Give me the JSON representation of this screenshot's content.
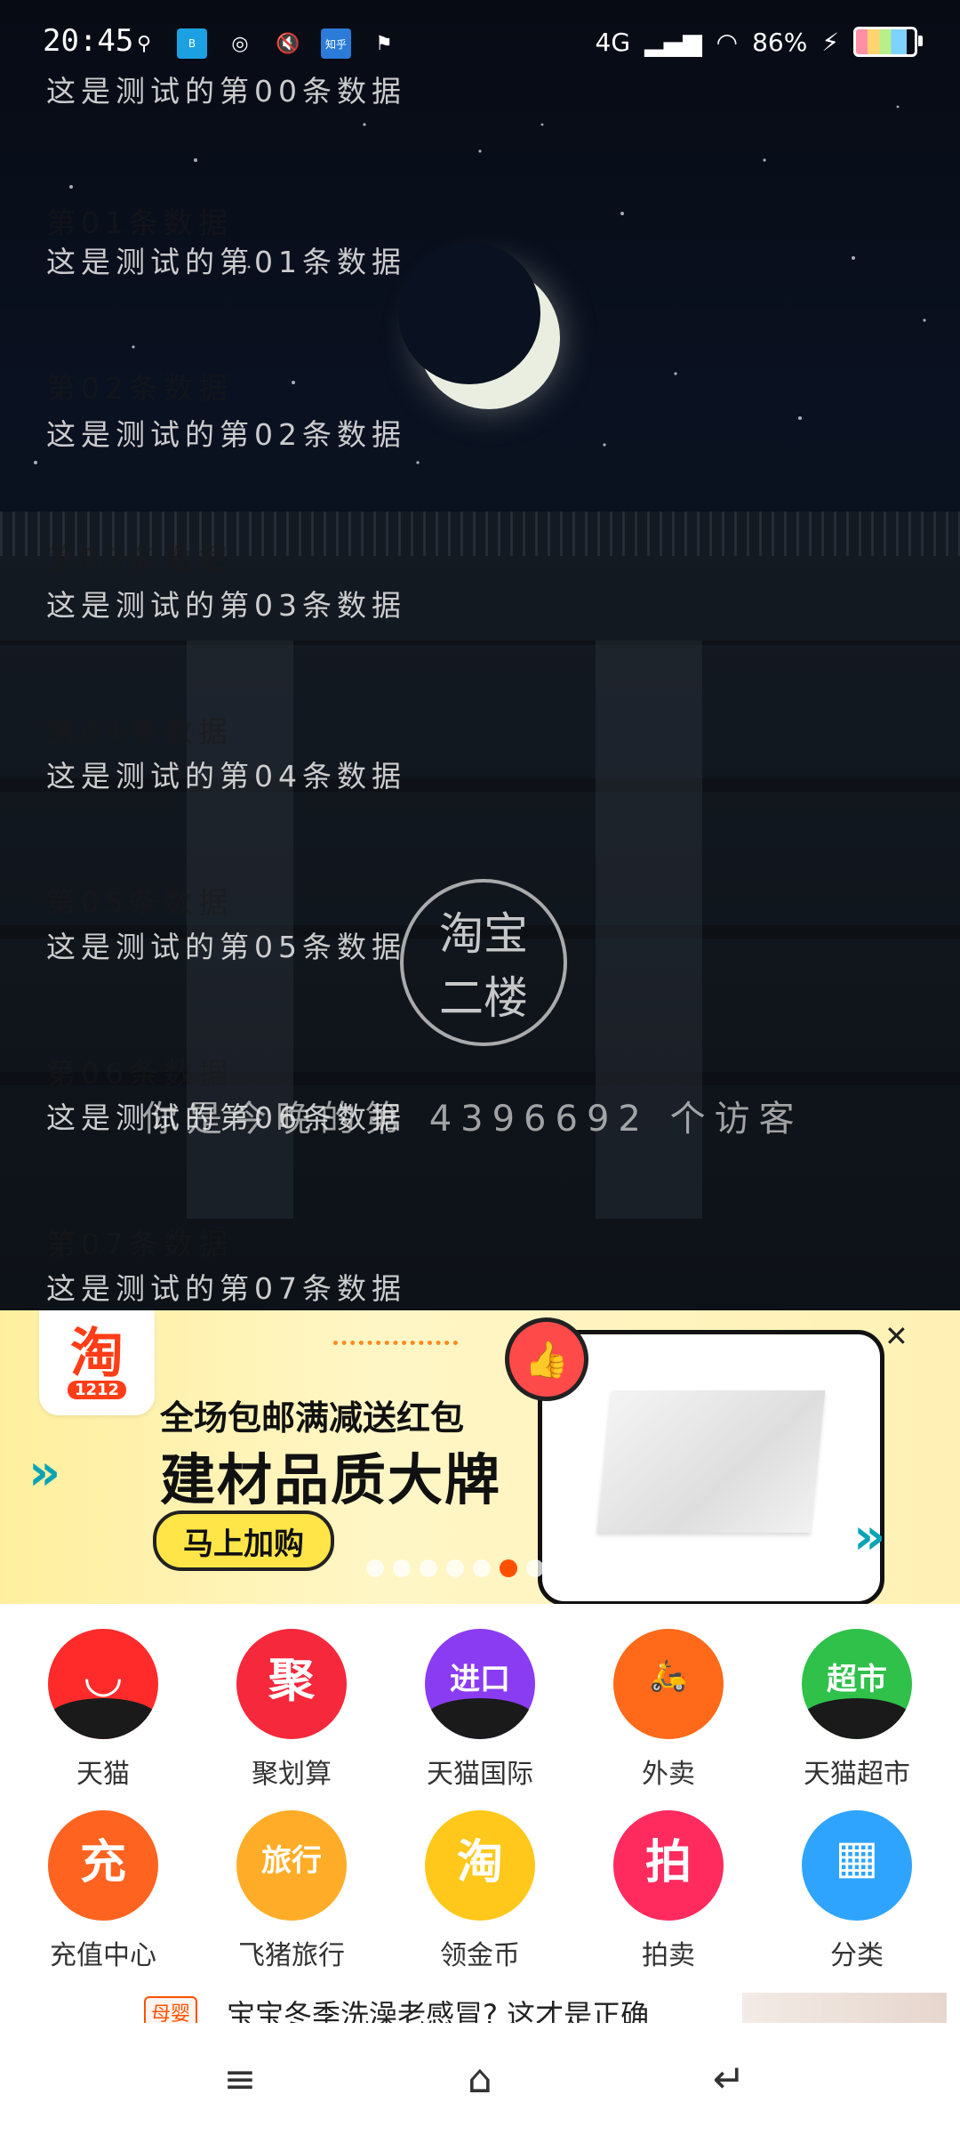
{
  "status_bar": {
    "time": "20:45",
    "network": "4G",
    "battery": "86%",
    "left_icons": [
      "usb-icon",
      "boss-app-icon",
      "netease-icon",
      "mute-icon",
      "zhihu-icon",
      "location-icon"
    ],
    "boss_label": "BOSS\n直聘",
    "zhihu_label": "知乎"
  },
  "overlay": {
    "rows": [
      {
        "desc": "这是测试的第00条数据"
      },
      {
        "title": "第01条数据",
        "desc": "这是测试的第01条数据"
      },
      {
        "title": "第02条数据",
        "desc": "这是测试的第02条数据"
      },
      {
        "title": "第03条数据",
        "desc": "这是测试的第03条数据"
      },
      {
        "title": "第04条数据",
        "desc": "这是测试的第04条数据"
      },
      {
        "title": "第05条数据",
        "desc": "这是测试的第05条数据"
      },
      {
        "title": "第06条数据",
        "desc": "这是测试的第06条数据"
      },
      {
        "title": "第07条数据",
        "desc": "这是测试的第07条数据"
      }
    ]
  },
  "video": {
    "logo_text": "淘宝\n二楼",
    "visitor_text": "你是今晚的第 4396692 个访客"
  },
  "banner": {
    "logo_char": "淘",
    "logo_sub": "1212",
    "subtitle": "全场包邮满减送红包",
    "headline": "建材品质大牌",
    "cta": "马上加购",
    "dot_count": 8,
    "active_dot": 5,
    "accent": "#ff5000"
  },
  "grid": {
    "items": [
      {
        "label": "天猫",
        "glyph": "◡",
        "color": "#ff2a2a"
      },
      {
        "label": "聚划算",
        "glyph": "聚",
        "color": "#f5283c"
      },
      {
        "label": "天猫国际",
        "glyph": "进口",
        "color": "#8a3cf2"
      },
      {
        "label": "外卖",
        "glyph": "🛵",
        "color": "#ff6a1a"
      },
      {
        "label": "天猫超市",
        "glyph": "超市",
        "color": "#2fc14a"
      },
      {
        "label": "充值中心",
        "glyph": "充",
        "color": "#ff6320"
      },
      {
        "label": "飞猪旅行",
        "glyph": "旅行",
        "color": "#ffad28"
      },
      {
        "label": "领金币",
        "glyph": "淘",
        "color": "#ffc81a"
      },
      {
        "label": "拍卖",
        "glyph": "拍",
        "color": "#ff2b5f"
      },
      {
        "label": "分类",
        "glyph": "▦",
        "color": "#2ea4ff"
      }
    ]
  },
  "ticker": {
    "tag": "母婴",
    "text": "宝宝冬季洗澡老感冒? 这才是正确"
  },
  "nav": {
    "menu": "≡",
    "home": "⌂",
    "back": "↵"
  }
}
